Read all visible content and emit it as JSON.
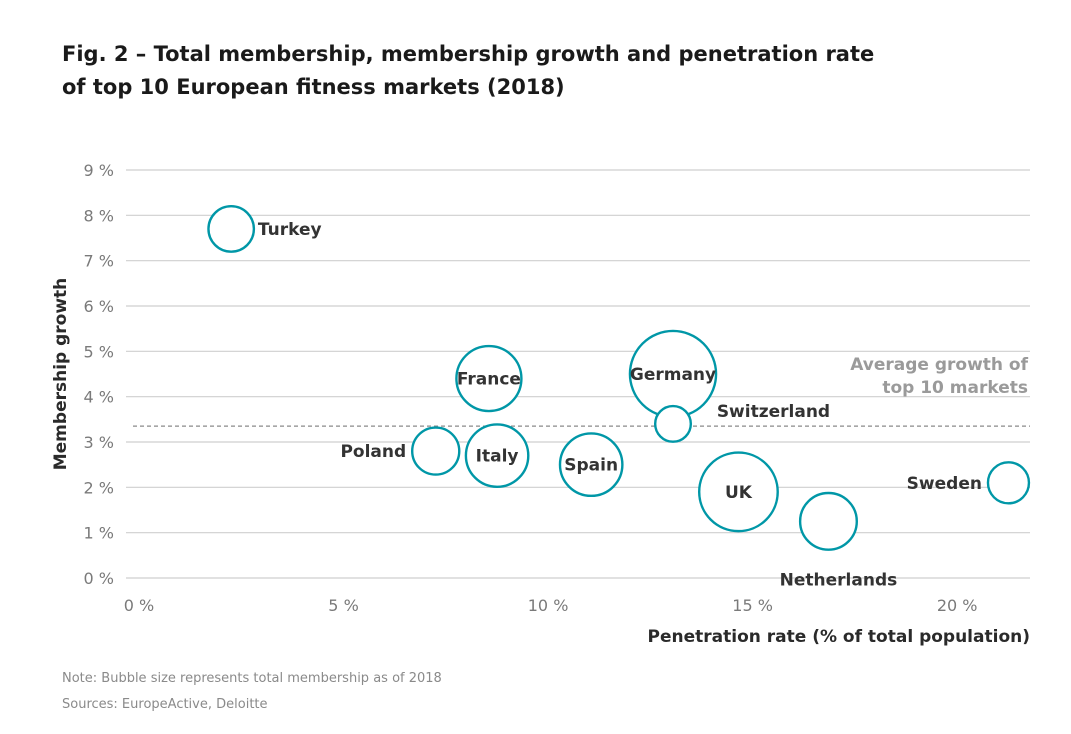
{
  "title": {
    "line1": "Fig. 2 – Total membership, membership growth and penetration rate",
    "line2": "of top 10 European fitness markets (2018)"
  },
  "notes": {
    "note": "Note: Bubble size represents total membership as of 2018",
    "sources": "Sources: EuropeActive, Deloitte"
  },
  "chart_data": {
    "type": "scatter",
    "subtype": "bubble",
    "xlabel": "Penetration rate (% of total population)",
    "ylabel": "Membership growth",
    "xlim": [
      0,
      22
    ],
    "ylim": [
      0,
      9
    ],
    "x_ticks": [
      {
        "value": 0,
        "label": "0 %"
      },
      {
        "value": 5,
        "label": "5 %"
      },
      {
        "value": 10,
        "label": "10 %"
      },
      {
        "value": 15,
        "label": "15 %"
      },
      {
        "value": 20,
        "label": "20 %"
      }
    ],
    "y_ticks": [
      {
        "value": 0,
        "label": "0 %"
      },
      {
        "value": 1,
        "label": "1 %"
      },
      {
        "value": 2,
        "label": "2 %"
      },
      {
        "value": 3,
        "label": "3 %"
      },
      {
        "value": 4,
        "label": "4 %"
      },
      {
        "value": 5,
        "label": "5 %"
      },
      {
        "value": 6,
        "label": "6 %"
      },
      {
        "value": 7,
        "label": "7 %"
      },
      {
        "value": 8,
        "label": "8 %"
      },
      {
        "value": 9,
        "label": "9 %"
      }
    ],
    "grid": "horizontal",
    "average_line": {
      "value": 3.35,
      "label_line1": "Average growth of",
      "label_line2": "top 10 markets"
    },
    "points": [
      {
        "name": "Turkey",
        "x": 2.4,
        "y": 7.7,
        "size": 0.38,
        "label_pos": "right"
      },
      {
        "name": "France",
        "x": 8.7,
        "y": 4.4,
        "size": 1.0,
        "label_pos": "center"
      },
      {
        "name": "Germany",
        "x": 13.2,
        "y": 4.5,
        "size": 2.0,
        "label_pos": "center"
      },
      {
        "name": "Switzerland",
        "x": 13.2,
        "y": 3.4,
        "size": 0.18,
        "label_pos": "right-above"
      },
      {
        "name": "Poland",
        "x": 7.4,
        "y": 2.8,
        "size": 0.42,
        "label_pos": "left"
      },
      {
        "name": "Italy",
        "x": 8.9,
        "y": 2.7,
        "size": 0.9,
        "label_pos": "center"
      },
      {
        "name": "Spain",
        "x": 11.2,
        "y": 2.5,
        "size": 0.9,
        "label_pos": "center"
      },
      {
        "name": "UK",
        "x": 14.8,
        "y": 1.9,
        "size": 1.6,
        "label_pos": "center"
      },
      {
        "name": "Netherlands",
        "x": 17.0,
        "y": 1.25,
        "size": 0.7,
        "label_pos": "below"
      },
      {
        "name": "Sweden",
        "x": 21.4,
        "y": 2.1,
        "size": 0.28,
        "label_pos": "left"
      }
    ],
    "colors": {
      "bubble_stroke": "#0097a7",
      "grid": "#cfcfcf",
      "average_line": "#8a8a8a",
      "average_label": "#9a9a9a",
      "tick_label": "#7a7a7a",
      "axis_title": "#2a2a2a",
      "point_label": "#333333"
    }
  }
}
